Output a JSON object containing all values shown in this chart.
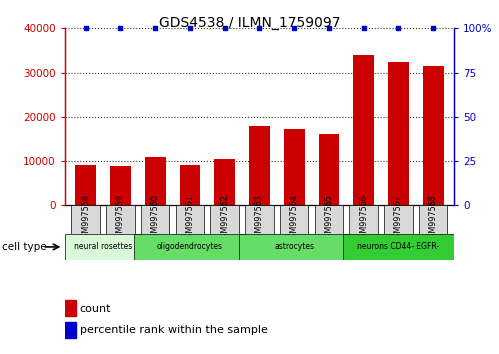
{
  "title": "GDS4538 / ILMN_1759097",
  "samples": [
    "GSM997558",
    "GSM997559",
    "GSM997560",
    "GSM997561",
    "GSM997562",
    "GSM997563",
    "GSM997564",
    "GSM997565",
    "GSM997566",
    "GSM997567",
    "GSM997568"
  ],
  "counts": [
    9200,
    8800,
    11000,
    9000,
    10500,
    18000,
    17200,
    16200,
    34000,
    32500,
    31500
  ],
  "percentile_ranks": [
    100,
    100,
    100,
    100,
    100,
    100,
    100,
    100,
    100,
    100,
    100
  ],
  "bar_color": "#cc0000",
  "percentile_color": "#0000cc",
  "ylim_left": [
    0,
    40000
  ],
  "ylim_right": [
    0,
    100
  ],
  "yticks_left": [
    0,
    10000,
    20000,
    30000,
    40000
  ],
  "yticks_right": [
    0,
    25,
    50,
    75,
    100
  ],
  "groups": [
    {
      "label": "neural rosettes",
      "start": 0,
      "end": 2,
      "color": "#d8f8d8"
    },
    {
      "label": "oligodendrocytes",
      "start": 2,
      "end": 5,
      "color": "#66dd66"
    },
    {
      "label": "astrocytes",
      "start": 5,
      "end": 8,
      "color": "#66dd66"
    },
    {
      "label": "neurons CD44- EGFR-",
      "start": 8,
      "end": 11,
      "color": "#33cc33"
    }
  ],
  "tick_bg_color": "#d8d8d8",
  "legend_count_label": "count",
  "legend_pct_label": "percentile rank within the sample",
  "cell_type_label": "cell type"
}
